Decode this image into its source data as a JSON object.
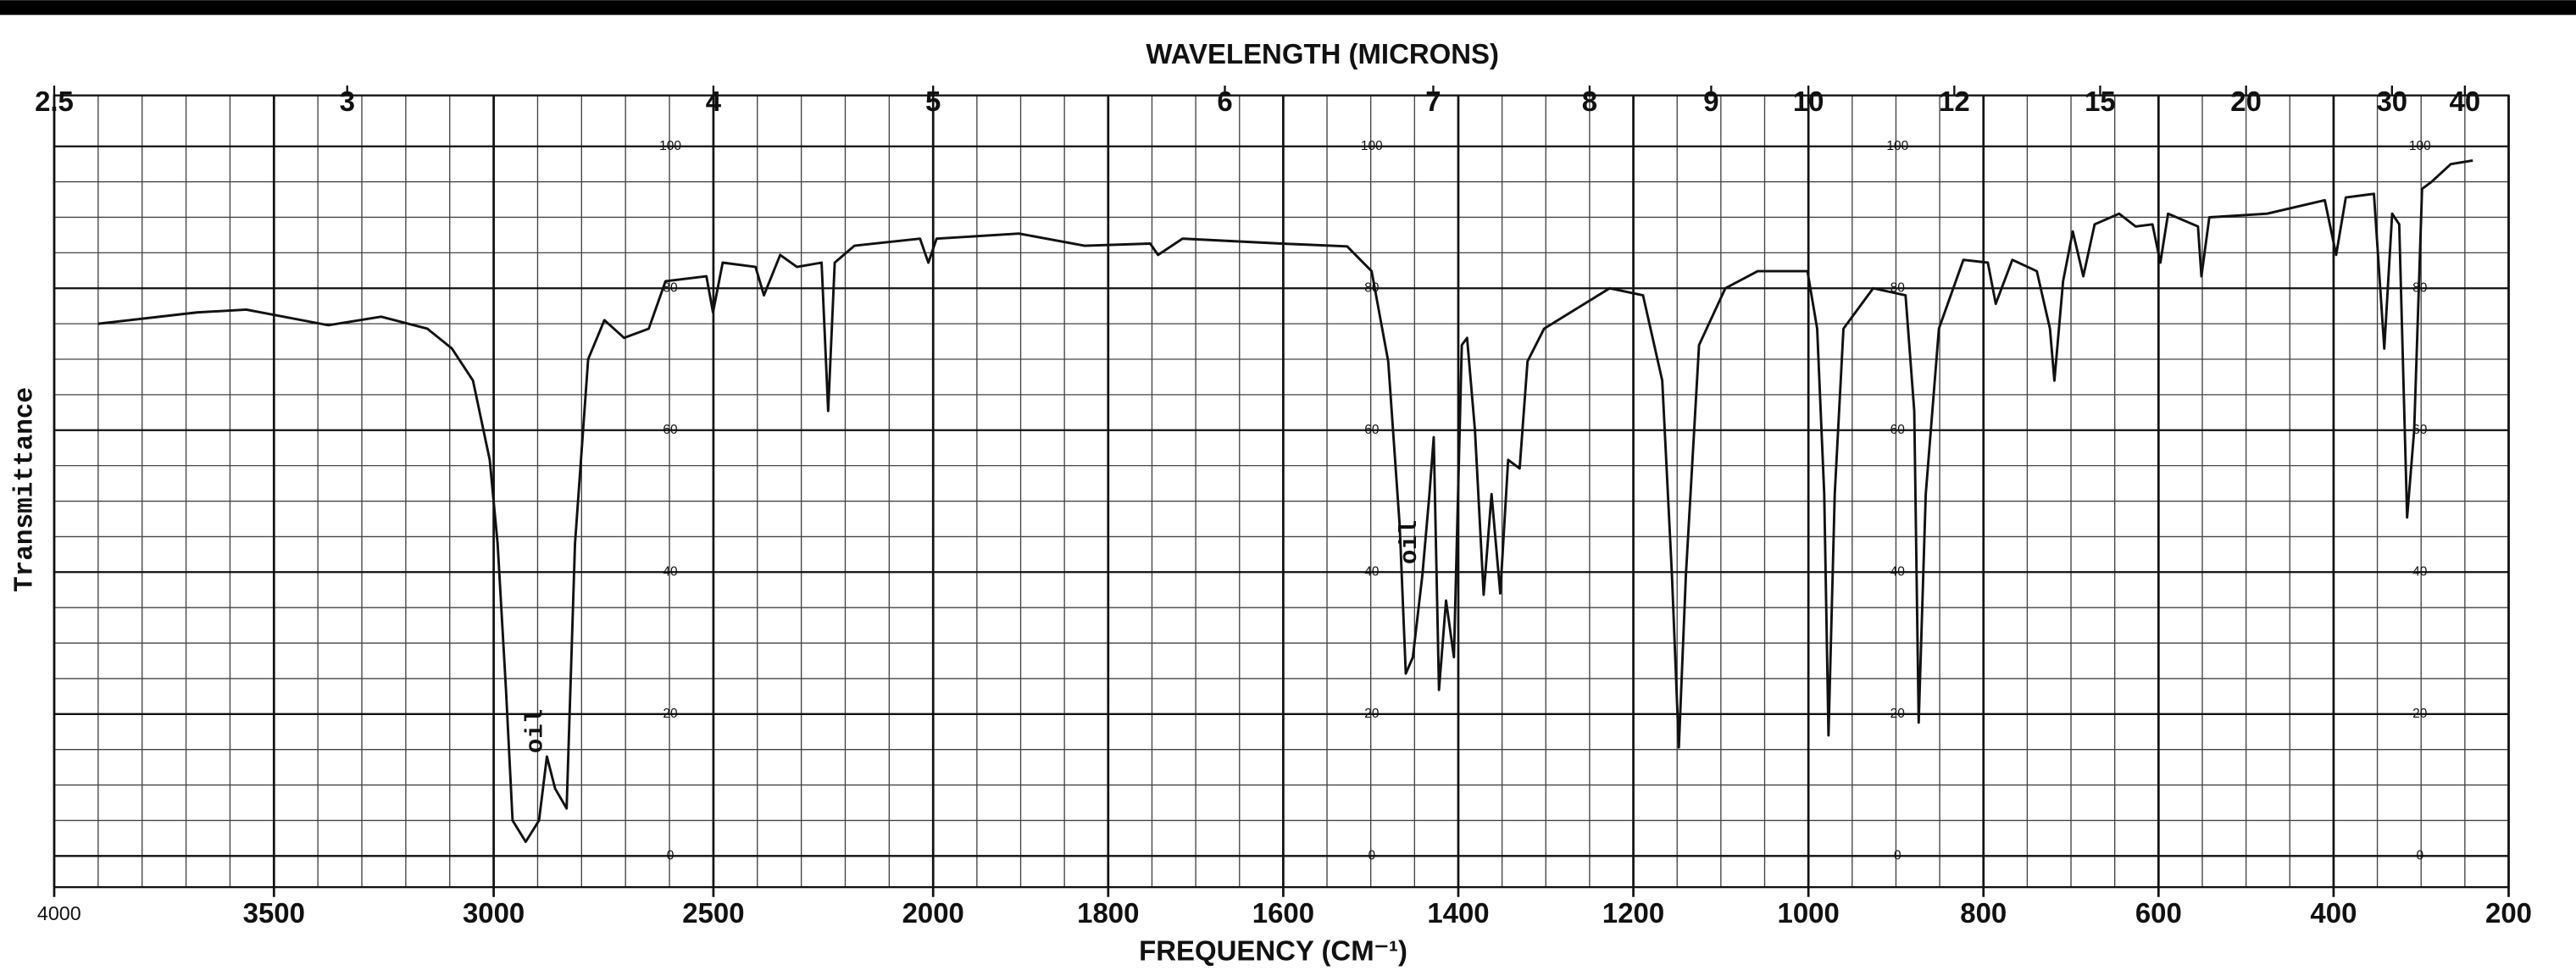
{
  "chart_data": {
    "type": "line",
    "title": "WAVELENGTH (MICRONS)",
    "xlabel": "FREQUENCY (CM⁻¹)",
    "ylabel": "Transmittance",
    "xlim": [
      4000,
      200
    ],
    "xbreak": 2000,
    "xticks": [
      4000,
      3500,
      3000,
      2500,
      2000,
      1800,
      1600,
      1400,
      1200,
      1000,
      800,
      600,
      400,
      200
    ],
    "x2ticks": [
      {
        "value": 4000,
        "label": "2.5"
      },
      {
        "value": 3333.3,
        "label": "3"
      },
      {
        "value": 2500,
        "label": "4"
      },
      {
        "value": 2000,
        "label": "5"
      },
      {
        "value": 1666.7,
        "label": "6"
      },
      {
        "value": 1428.6,
        "label": "7"
      },
      {
        "value": 1250,
        "label": "8"
      },
      {
        "value": 1111.1,
        "label": "9"
      },
      {
        "value": 1000,
        "label": "10"
      },
      {
        "value": 833.3,
        "label": "12"
      },
      {
        "value": 666.7,
        "label": "15"
      },
      {
        "value": 500,
        "label": "20"
      },
      {
        "value": 333.3,
        "label": "30"
      },
      {
        "value": 250,
        "label": "40"
      }
    ],
    "ylim": [
      0,
      100
    ],
    "yticks": [
      0,
      20,
      40,
      60,
      80,
      100
    ],
    "grid": true,
    "xgrid_step": [
      100,
      50
    ],
    "ygrid_step": 5,
    "color": "#111111",
    "annotations": [
      {
        "text": "oil"
      },
      {
        "text": "oil"
      }
    ],
    "x": [
      3900,
      3675,
      3563,
      3376,
      3256,
      3151,
      3095,
      3047,
      3009,
      2991,
      2972,
      2957,
      2927,
      2897,
      2879,
      2860,
      2834,
      2815,
      2785,
      2748,
      2703,
      2647,
      2609,
      2516,
      2501,
      2479,
      2404,
      2385,
      2348,
      2310,
      2254,
      2239,
      2224,
      2179,
      2030,
      2011,
      1996,
      1902,
      1827,
      1752,
      1743,
      1715,
      1602,
      1527,
      1499,
      1480,
      1467,
      1460,
      1452,
      1441,
      1433,
      1428,
      1422,
      1414,
      1405,
      1396,
      1390,
      1381,
      1371,
      1362,
      1352,
      1343,
      1330,
      1321,
      1302,
      1227,
      1189,
      1167,
      1156,
      1148,
      1140,
      1125,
      1095,
      1058,
      1001,
      990,
      982,
      977,
      970,
      960,
      926,
      889,
      879,
      874,
      866,
      851,
      823,
      795,
      786,
      767,
      739,
      724,
      719,
      709,
      698,
      686,
      673,
      645,
      626,
      607,
      598,
      589,
      555,
      551,
      542,
      476,
      410,
      397,
      386,
      354,
      342,
      333,
      325,
      316,
      308,
      299,
      288,
      266,
      241
    ],
    "values": [
      75,
      76.6,
      77,
      74.8,
      76,
      74.3,
      71.5,
      67,
      55.8,
      44,
      23.4,
      5,
      2,
      5,
      14,
      9.5,
      6.7,
      44,
      70,
      75.5,
      73,
      74.3,
      81,
      81.7,
      76.6,
      83.6,
      83,
      79,
      84.7,
      83,
      83.6,
      62.7,
      83.6,
      86,
      87,
      83.6,
      87,
      87.7,
      86,
      86.3,
      84.7,
      87,
      86.3,
      85.9,
      82.4,
      69.7,
      46.5,
      25.7,
      28,
      39.6,
      51,
      59,
      23.4,
      36,
      28,
      72,
      73,
      60,
      36.8,
      51,
      37,
      55.8,
      54.6,
      69.7,
      74.3,
      80,
      79,
      67,
      39.6,
      15.3,
      39.6,
      72,
      80,
      82.4,
      82.4,
      74.3,
      51,
      17,
      51,
      74.3,
      80,
      79,
      62.7,
      18.8,
      51,
      74.3,
      84,
      83.6,
      77.8,
      84,
      82.4,
      74.3,
      67,
      81,
      88,
      81.7,
      89,
      90.5,
      88.7,
      89,
      83.6,
      90.5,
      88.7,
      81.7,
      90,
      90.5,
      92.4,
      84.7,
      92.8,
      93.3,
      71.5,
      90.5,
      89,
      47.7,
      60,
      94,
      95,
      97.5,
      98
    ]
  }
}
